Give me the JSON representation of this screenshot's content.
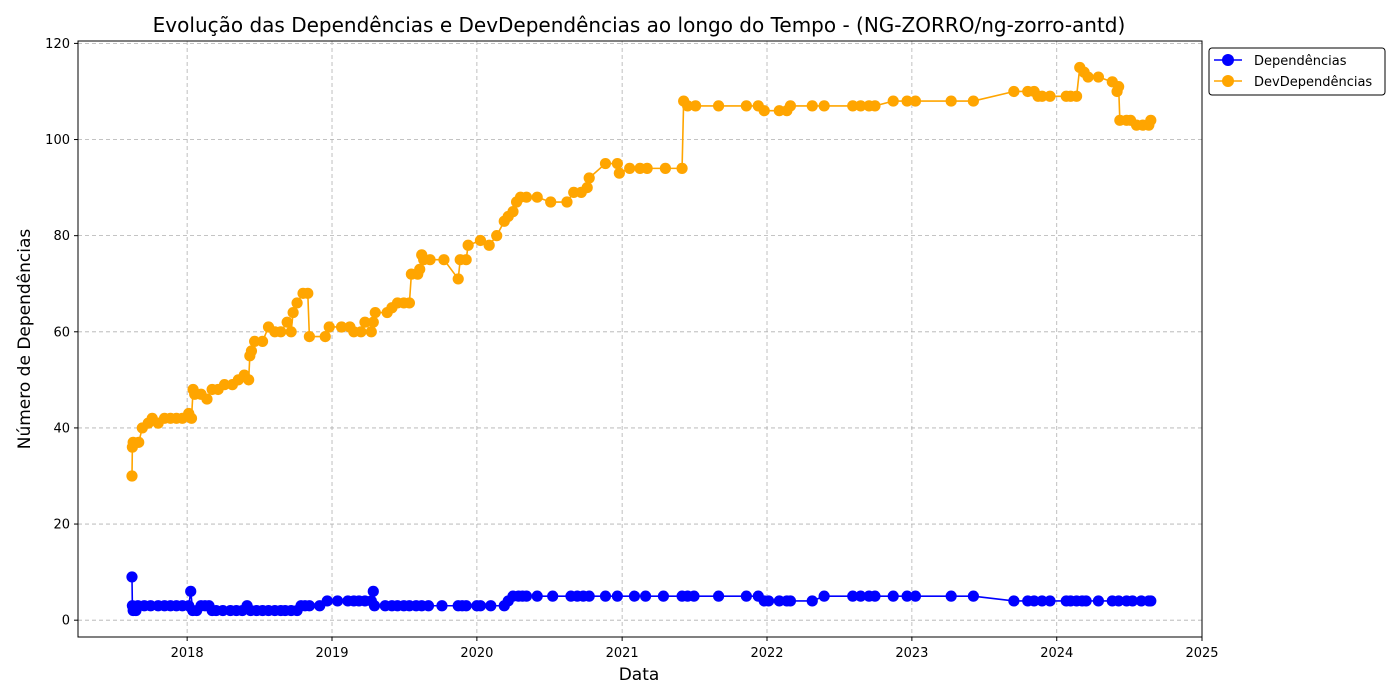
{
  "chart_data": {
    "type": "line",
    "title": "Evolução das Dependências e DevDependências ao longo do Tempo - (NG-ZORRO/ng-zorro-antd)",
    "xlabel": "Data",
    "ylabel": "Número de Dependências",
    "xlim": [
      "2017-04-01",
      "2025-01-01"
    ],
    "ylim": [
      -3.5,
      120.5
    ],
    "x_ticks": [
      "2018",
      "2019",
      "2020",
      "2021",
      "2022",
      "2023",
      "2024",
      "2025"
    ],
    "y_ticks": [
      0,
      20,
      40,
      60,
      80,
      100,
      120
    ],
    "grid": true,
    "legend_position": "upper-right, outside plot",
    "series": [
      {
        "name": "Dependências",
        "color": "#0000ff",
        "points": [
          [
            "2017-08-15",
            9
          ],
          [
            "2017-08-16",
            3
          ],
          [
            "2017-08-18",
            2
          ],
          [
            "2017-08-25",
            2
          ],
          [
            "2017-08-30",
            3
          ],
          [
            "2017-09-15",
            3
          ],
          [
            "2017-10-01",
            3
          ],
          [
            "2017-10-20",
            3
          ],
          [
            "2017-11-05",
            3
          ],
          [
            "2017-11-20",
            3
          ],
          [
            "2017-12-05",
            3
          ],
          [
            "2017-12-20",
            3
          ],
          [
            "2018-01-05",
            3
          ],
          [
            "2018-01-10",
            6
          ],
          [
            "2018-01-15",
            2
          ],
          [
            "2018-01-25",
            2
          ],
          [
            "2018-02-05",
            3
          ],
          [
            "2018-02-15",
            3
          ],
          [
            "2018-02-25",
            3
          ],
          [
            "2018-03-05",
            2
          ],
          [
            "2018-03-15",
            2
          ],
          [
            "2018-04-01",
            2
          ],
          [
            "2018-04-20",
            2
          ],
          [
            "2018-05-05",
            2
          ],
          [
            "2018-05-20",
            2
          ],
          [
            "2018-06-01",
            3
          ],
          [
            "2018-06-10",
            2
          ],
          [
            "2018-06-25",
            2
          ],
          [
            "2018-07-10",
            2
          ],
          [
            "2018-07-25",
            2
          ],
          [
            "2018-08-10",
            2
          ],
          [
            "2018-08-25",
            2
          ],
          [
            "2018-09-05",
            2
          ],
          [
            "2018-09-20",
            2
          ],
          [
            "2018-10-05",
            2
          ],
          [
            "2018-10-15",
            3
          ],
          [
            "2018-10-25",
            3
          ],
          [
            "2018-11-05",
            3
          ],
          [
            "2018-12-01",
            3
          ],
          [
            "2018-12-20",
            4
          ],
          [
            "2019-01-15",
            4
          ],
          [
            "2019-02-10",
            4
          ],
          [
            "2019-02-25",
            4
          ],
          [
            "2019-03-10",
            4
          ],
          [
            "2019-03-25",
            4
          ],
          [
            "2019-04-10",
            4
          ],
          [
            "2019-04-15",
            6
          ],
          [
            "2019-04-18",
            3
          ],
          [
            "2019-05-15",
            3
          ],
          [
            "2019-06-01",
            3
          ],
          [
            "2019-06-15",
            3
          ],
          [
            "2019-07-01",
            3
          ],
          [
            "2019-07-15",
            3
          ],
          [
            "2019-08-01",
            3
          ],
          [
            "2019-08-15",
            3
          ],
          [
            "2019-09-01",
            3
          ],
          [
            "2019-10-05",
            3
          ],
          [
            "2019-11-15",
            3
          ],
          [
            "2019-11-25",
            3
          ],
          [
            "2019-12-05",
            3
          ],
          [
            "2020-01-01",
            3
          ],
          [
            "2020-01-10",
            3
          ],
          [
            "2020-02-05",
            3
          ],
          [
            "2020-03-10",
            3
          ],
          [
            "2020-03-20",
            4
          ],
          [
            "2020-04-01",
            5
          ],
          [
            "2020-04-15",
            5
          ],
          [
            "2020-04-25",
            5
          ],
          [
            "2020-05-05",
            5
          ],
          [
            "2020-06-01",
            5
          ],
          [
            "2020-07-10",
            5
          ],
          [
            "2020-08-25",
            5
          ],
          [
            "2020-09-10",
            5
          ],
          [
            "2020-09-25",
            5
          ],
          [
            "2020-10-10",
            5
          ],
          [
            "2020-11-20",
            5
          ],
          [
            "2020-12-20",
            5
          ],
          [
            "2021-02-01",
            5
          ],
          [
            "2021-03-01",
            5
          ],
          [
            "2021-04-15",
            5
          ],
          [
            "2021-06-01",
            5
          ],
          [
            "2021-06-15",
            5
          ],
          [
            "2021-07-01",
            5
          ],
          [
            "2021-09-01",
            5
          ],
          [
            "2021-11-10",
            5
          ],
          [
            "2021-12-10",
            5
          ],
          [
            "2021-12-25",
            4
          ],
          [
            "2022-01-05",
            4
          ],
          [
            "2022-02-01",
            4
          ],
          [
            "2022-02-20",
            4
          ],
          [
            "2022-03-01",
            4
          ],
          [
            "2022-04-25",
            4
          ],
          [
            "2022-05-25",
            5
          ],
          [
            "2022-08-05",
            5
          ],
          [
            "2022-08-25",
            5
          ],
          [
            "2022-09-15",
            5
          ],
          [
            "2022-09-30",
            5
          ],
          [
            "2022-11-15",
            5
          ],
          [
            "2022-12-20",
            5
          ],
          [
            "2023-01-10",
            5
          ],
          [
            "2023-04-10",
            5
          ],
          [
            "2023-06-05",
            5
          ],
          [
            "2023-09-15",
            4
          ],
          [
            "2023-10-20",
            4
          ],
          [
            "2023-11-05",
            4
          ],
          [
            "2023-11-25",
            4
          ],
          [
            "2023-12-15",
            4
          ],
          [
            "2024-01-25",
            4
          ],
          [
            "2024-02-05",
            4
          ],
          [
            "2024-02-20",
            4
          ],
          [
            "2024-03-05",
            4
          ],
          [
            "2024-03-15",
            4
          ],
          [
            "2024-04-15",
            4
          ],
          [
            "2024-05-20",
            4
          ],
          [
            "2024-06-05",
            4
          ],
          [
            "2024-06-25",
            4
          ],
          [
            "2024-07-10",
            4
          ],
          [
            "2024-08-01",
            4
          ],
          [
            "2024-08-20",
            4
          ],
          [
            "2024-08-25",
            4
          ]
        ]
      },
      {
        "name": "DevDependências",
        "color": "#ffa500",
        "points": [
          [
            "2017-08-15",
            30
          ],
          [
            "2017-08-16",
            36
          ],
          [
            "2017-08-18",
            37
          ],
          [
            "2017-09-01",
            37
          ],
          [
            "2017-09-10",
            40
          ],
          [
            "2017-09-25",
            41
          ],
          [
            "2017-10-05",
            42
          ],
          [
            "2017-10-20",
            41
          ],
          [
            "2017-11-05",
            42
          ],
          [
            "2017-11-20",
            42
          ],
          [
            "2017-12-05",
            42
          ],
          [
            "2017-12-20",
            42
          ],
          [
            "2018-01-05",
            43
          ],
          [
            "2018-01-12",
            42
          ],
          [
            "2018-01-16",
            48
          ],
          [
            "2018-01-20",
            47
          ],
          [
            "2018-02-05",
            47
          ],
          [
            "2018-02-20",
            46
          ],
          [
            "2018-03-05",
            48
          ],
          [
            "2018-03-20",
            48
          ],
          [
            "2018-04-05",
            49
          ],
          [
            "2018-04-25",
            49
          ],
          [
            "2018-05-10",
            50
          ],
          [
            "2018-05-25",
            51
          ],
          [
            "2018-06-05",
            50
          ],
          [
            "2018-06-08",
            55
          ],
          [
            "2018-06-12",
            56
          ],
          [
            "2018-06-20",
            58
          ],
          [
            "2018-07-10",
            58
          ],
          [
            "2018-07-25",
            61
          ],
          [
            "2018-08-10",
            60
          ],
          [
            "2018-08-25",
            60
          ],
          [
            "2018-09-10",
            62
          ],
          [
            "2018-09-20",
            60
          ],
          [
            "2018-09-25",
            64
          ],
          [
            "2018-10-05",
            66
          ],
          [
            "2018-10-20",
            68
          ],
          [
            "2018-11-01",
            68
          ],
          [
            "2018-11-05",
            59
          ],
          [
            "2018-12-15",
            59
          ],
          [
            "2018-12-25",
            61
          ],
          [
            "2019-01-25",
            61
          ],
          [
            "2019-02-15",
            61
          ],
          [
            "2019-02-25",
            60
          ],
          [
            "2019-03-15",
            60
          ],
          [
            "2019-03-25",
            62
          ],
          [
            "2019-04-10",
            60
          ],
          [
            "2019-04-15",
            62
          ],
          [
            "2019-04-20",
            64
          ],
          [
            "2019-05-20",
            64
          ],
          [
            "2019-06-01",
            65
          ],
          [
            "2019-06-15",
            66
          ],
          [
            "2019-07-01",
            66
          ],
          [
            "2019-07-15",
            66
          ],
          [
            "2019-07-20",
            72
          ],
          [
            "2019-08-05",
            72
          ],
          [
            "2019-08-10",
            73
          ],
          [
            "2019-08-15",
            76
          ],
          [
            "2019-08-20",
            75
          ],
          [
            "2019-09-05",
            75
          ],
          [
            "2019-10-10",
            75
          ],
          [
            "2019-11-15",
            71
          ],
          [
            "2019-11-20",
            75
          ],
          [
            "2019-12-05",
            75
          ],
          [
            "2019-12-10",
            78
          ],
          [
            "2020-01-10",
            79
          ],
          [
            "2020-02-01",
            78
          ],
          [
            "2020-02-20",
            80
          ],
          [
            "2020-03-10",
            83
          ],
          [
            "2020-03-20",
            84
          ],
          [
            "2020-04-01",
            85
          ],
          [
            "2020-04-10",
            87
          ],
          [
            "2020-04-20",
            88
          ],
          [
            "2020-05-05",
            88
          ],
          [
            "2020-06-01",
            88
          ],
          [
            "2020-07-05",
            87
          ],
          [
            "2020-08-15",
            87
          ],
          [
            "2020-09-01",
            89
          ],
          [
            "2020-09-20",
            89
          ],
          [
            "2020-10-05",
            90
          ],
          [
            "2020-10-10",
            92
          ],
          [
            "2020-11-20",
            95
          ],
          [
            "2020-12-20",
            95
          ],
          [
            "2020-12-25",
            93
          ],
          [
            "2021-01-20",
            94
          ],
          [
            "2021-02-15",
            94
          ],
          [
            "2021-03-05",
            94
          ],
          [
            "2021-04-20",
            94
          ],
          [
            "2021-06-01",
            94
          ],
          [
            "2021-06-05",
            108
          ],
          [
            "2021-06-15",
            107
          ],
          [
            "2021-07-05",
            107
          ],
          [
            "2021-09-01",
            107
          ],
          [
            "2021-11-10",
            107
          ],
          [
            "2021-12-10",
            107
          ],
          [
            "2021-12-25",
            106
          ],
          [
            "2022-02-01",
            106
          ],
          [
            "2022-02-20",
            106
          ],
          [
            "2022-03-01",
            107
          ],
          [
            "2022-04-25",
            107
          ],
          [
            "2022-05-25",
            107
          ],
          [
            "2022-08-05",
            107
          ],
          [
            "2022-08-25",
            107
          ],
          [
            "2022-09-15",
            107
          ],
          [
            "2022-09-30",
            107
          ],
          [
            "2022-11-15",
            108
          ],
          [
            "2022-12-20",
            108
          ],
          [
            "2023-01-10",
            108
          ],
          [
            "2023-04-10",
            108
          ],
          [
            "2023-06-05",
            108
          ],
          [
            "2023-09-15",
            110
          ],
          [
            "2023-10-20",
            110
          ],
          [
            "2023-11-05",
            110
          ],
          [
            "2023-11-15",
            109
          ],
          [
            "2023-11-25",
            109
          ],
          [
            "2023-12-15",
            109
          ],
          [
            "2024-01-25",
            109
          ],
          [
            "2024-02-05",
            109
          ],
          [
            "2024-02-20",
            109
          ],
          [
            "2024-02-28",
            115
          ],
          [
            "2024-03-10",
            114
          ],
          [
            "2024-03-20",
            113
          ],
          [
            "2024-04-15",
            113
          ],
          [
            "2024-05-20",
            112
          ],
          [
            "2024-06-01",
            110
          ],
          [
            "2024-06-05",
            111
          ],
          [
            "2024-06-08",
            104
          ],
          [
            "2024-06-25",
            104
          ],
          [
            "2024-07-05",
            104
          ],
          [
            "2024-07-20",
            103
          ],
          [
            "2024-08-05",
            103
          ],
          [
            "2024-08-20",
            103
          ],
          [
            "2024-08-25",
            104
          ]
        ]
      }
    ]
  }
}
